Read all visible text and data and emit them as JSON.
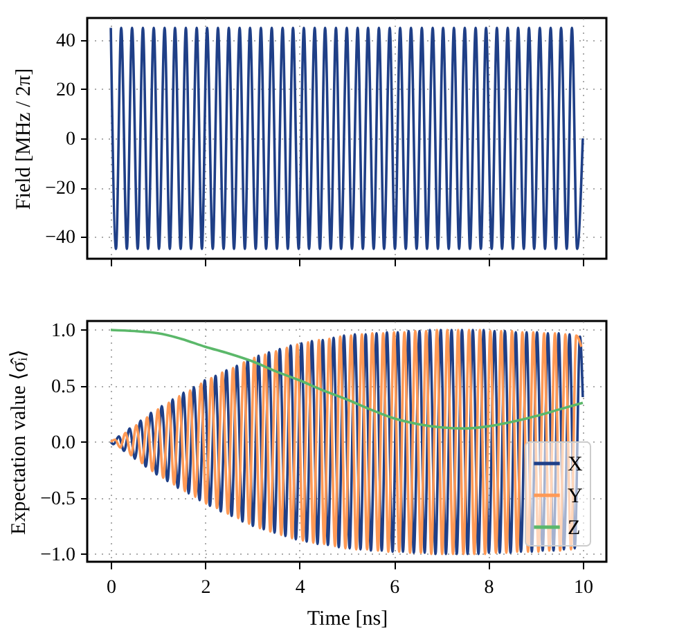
{
  "chart_data": [
    {
      "type": "line",
      "ylabel": "Field [MHz / 2π]",
      "xlim": [
        -0.5,
        10.5
      ],
      "xticks": [
        0,
        2,
        4,
        6,
        8,
        10
      ],
      "ylim": [
        -49,
        49
      ],
      "yticks": [
        -40,
        -20,
        0,
        20,
        40
      ],
      "grid": true,
      "tick_labels": "y",
      "series": [
        {
          "color": "#1f3f87",
          "x": [
            0,
            0.11,
            0.22,
            0.34,
            0.45,
            0.57,
            0.68,
            0.79,
            0.91,
            1.02,
            1.14,
            1.25,
            1.36,
            1.48,
            1.59,
            1.7,
            1.82,
            1.93,
            2.04,
            2.16,
            2.27,
            2.39,
            2.5,
            2.61,
            2.73,
            2.84,
            2.95,
            3.07,
            3.18,
            3.29,
            3.41,
            3.52,
            3.64,
            3.75,
            3.86,
            3.98,
            4.09,
            4.2,
            4.32,
            4.43,
            4.54,
            4.66,
            4.77,
            4.88,
            5.0,
            5.11,
            5.23,
            5.34,
            5.45,
            5.57,
            5.68,
            5.79,
            5.91,
            6.02,
            6.13,
            6.25,
            6.36,
            6.48,
            6.59,
            6.7,
            6.82,
            6.93,
            7.04,
            7.16,
            7.27,
            7.38,
            7.5,
            7.61,
            7.73,
            7.84,
            7.95,
            8.07,
            8.18,
            8.29,
            8.41,
            8.52,
            8.63,
            8.75,
            8.86,
            8.97,
            9.09,
            9.2,
            9.32,
            9.43,
            9.54,
            9.66,
            9.77,
            9.88,
            10
          ],
          "values": [
            45,
            -45,
            45,
            -45,
            45,
            -45,
            45,
            -45,
            45,
            -45,
            45,
            -45,
            45,
            -45,
            45,
            -45,
            45,
            -45,
            45,
            -45,
            45,
            -45,
            45,
            -45,
            45,
            -45,
            45,
            -45,
            45,
            -45,
            45,
            -45,
            45,
            -45,
            45,
            -45,
            45,
            -45,
            45,
            -45,
            45,
            -45,
            45,
            -45,
            45,
            -45,
            45,
            -45,
            45,
            -45,
            45,
            -45,
            45,
            -45,
            45,
            -45,
            45,
            -45,
            45,
            -45,
            45,
            -45,
            45,
            -45,
            45,
            -45,
            45,
            -45,
            45,
            -45,
            45,
            -45,
            45,
            -45,
            45,
            -45,
            45,
            -45,
            45,
            -45,
            45,
            -45,
            45,
            -45,
            45,
            -45,
            45,
            -45,
            0
          ]
        }
      ]
    },
    {
      "type": "line",
      "xlabel": "Time [ns]",
      "ylabel": "Expectation value ⟨σ̂ᵢ⟩",
      "xlim": [
        -0.5,
        10.5
      ],
      "xticks": [
        0,
        2,
        4,
        6,
        8,
        10
      ],
      "ylim": [
        -1.07,
        1.08
      ],
      "yticks": [
        {
          "value": -1,
          "label": "−1.0"
        },
        -0.5,
        {
          "value": 0,
          "label": "0.0"
        },
        0.5,
        {
          "value": 1,
          "label": "1.0"
        }
      ],
      "grid": true,
      "legend": "bottom right",
      "series": [
        {
          "name": "X",
          "color": "#1f3f87",
          "x": [
            0,
            0.06,
            0.17,
            0.28,
            0.4,
            0.51,
            0.63,
            0.74,
            0.85,
            0.97,
            1.08,
            1.2,
            1.31,
            1.42,
            1.54,
            1.65,
            1.76,
            1.88,
            1.99,
            2.1,
            2.22,
            2.33,
            2.45,
            2.56,
            2.67,
            2.79,
            2.9,
            3.01,
            3.13,
            3.24,
            3.35,
            3.47,
            3.58,
            3.7,
            3.81,
            3.92,
            4.04,
            4.15,
            4.26,
            4.38,
            4.49,
            4.6,
            4.72,
            4.83,
            4.94,
            5.06,
            5.17,
            5.29,
            5.4,
            5.51,
            5.63,
            5.74,
            5.85,
            5.97,
            6.08,
            6.19,
            6.31,
            6.42,
            6.54,
            6.65,
            6.76,
            6.88,
            6.99,
            7.1,
            7.22,
            7.33,
            7.44,
            7.56,
            7.67,
            7.79,
            7.9,
            8.01,
            8.13,
            8.24,
            8.35,
            8.47,
            8.58,
            8.69,
            8.81,
            8.92,
            9.03,
            9.15,
            9.26,
            9.38,
            9.49,
            9.6,
            9.72,
            9.83,
            9.94,
            10
          ],
          "values": [
            0,
            -0.02,
            0.05,
            -0.08,
            0.12,
            -0.15,
            0.19,
            -0.22,
            0.26,
            -0.29,
            0.32,
            -0.35,
            0.38,
            -0.41,
            0.44,
            -0.46,
            0.49,
            -0.52,
            0.55,
            -0.57,
            0.59,
            -0.62,
            0.64,
            -0.66,
            0.68,
            -0.71,
            0.73,
            -0.75,
            0.77,
            -0.78,
            0.8,
            -0.81,
            0.83,
            -0.84,
            0.86,
            -0.87,
            0.88,
            -0.89,
            0.9,
            -0.91,
            0.91,
            -0.92,
            0.93,
            -0.94,
            0.95,
            -0.95,
            0.96,
            -0.96,
            0.96,
            -0.97,
            0.97,
            -0.97,
            0.98,
            -0.98,
            0.98,
            -0.98,
            0.99,
            -0.99,
            0.99,
            -0.99,
            1.0,
            -1.0,
            1.0,
            -1.0,
            1.0,
            -1.0,
            1.0,
            -1.0,
            1.0,
            -1.0,
            1.0,
            -0.99,
            0.99,
            -0.99,
            0.99,
            -0.99,
            0.98,
            -0.98,
            0.98,
            -0.98,
            0.98,
            -0.97,
            0.97,
            -0.97,
            0.97,
            -0.96,
            0.96,
            -0.95,
            0.94,
            0.4
          ]
        },
        {
          "name": "Y",
          "color": "#ff9955",
          "x": [
            0,
            0.09,
            0.2,
            0.31,
            0.43,
            0.54,
            0.66,
            0.77,
            0.88,
            1.0,
            1.11,
            1.23,
            1.34,
            1.45,
            1.57,
            1.68,
            1.79,
            1.91,
            2.02,
            2.13,
            2.25,
            2.36,
            2.48,
            2.59,
            2.7,
            2.82,
            2.93,
            3.04,
            3.16,
            3.27,
            3.38,
            3.5,
            3.61,
            3.73,
            3.84,
            3.95,
            4.07,
            4.18,
            4.29,
            4.41,
            4.52,
            4.63,
            4.75,
            4.86,
            4.97,
            5.09,
            5.2,
            5.32,
            5.43,
            5.54,
            5.66,
            5.77,
            5.88,
            6.0,
            6.11,
            6.22,
            6.34,
            6.45,
            6.57,
            6.68,
            6.79,
            6.91,
            7.02,
            7.13,
            7.25,
            7.36,
            7.47,
            7.59,
            7.7,
            7.82,
            7.93,
            8.04,
            8.16,
            8.27,
            8.38,
            8.5,
            8.61,
            8.72,
            8.84,
            8.95,
            9.06,
            9.18,
            9.29,
            9.41,
            9.52,
            9.63,
            9.75,
            9.86,
            9.97
          ],
          "values": [
            0,
            0.02,
            -0.05,
            0.08,
            -0.12,
            0.15,
            -0.19,
            0.22,
            -0.26,
            0.29,
            -0.32,
            0.35,
            -0.38,
            0.41,
            -0.44,
            0.46,
            -0.49,
            0.52,
            -0.55,
            0.57,
            -0.59,
            0.62,
            -0.64,
            0.66,
            -0.68,
            0.71,
            -0.73,
            0.75,
            -0.77,
            0.78,
            -0.8,
            0.81,
            -0.83,
            0.84,
            -0.86,
            0.87,
            -0.88,
            0.89,
            -0.9,
            0.91,
            -0.91,
            0.92,
            -0.93,
            0.94,
            -0.95,
            0.95,
            -0.96,
            0.96,
            -0.96,
            0.97,
            -0.97,
            0.97,
            -0.98,
            0.98,
            -0.98,
            0.98,
            -0.99,
            0.99,
            -0.99,
            0.99,
            -1.0,
            1.0,
            -1.0,
            1.0,
            -1.0,
            1.0,
            -1.0,
            1.0,
            -1.0,
            1.0,
            -1.0,
            0.99,
            -0.99,
            0.99,
            -0.99,
            0.99,
            -0.98,
            0.98,
            -0.98,
            0.98,
            -0.98,
            0.97,
            -0.97,
            0.97,
            -0.97,
            0.96,
            -0.96,
            0.95,
            0.85
          ]
        },
        {
          "name": "Z",
          "color": "#5bb86a",
          "x": [
            0,
            0.5,
            1,
            1.5,
            2,
            2.5,
            3,
            3.5,
            4,
            4.5,
            5,
            5.5,
            6,
            6.5,
            7,
            7.5,
            8,
            8.5,
            9,
            9.5,
            10
          ],
          "values": [
            1.0,
            0.99,
            0.97,
            0.92,
            0.85,
            0.79,
            0.72,
            0.63,
            0.55,
            0.46,
            0.38,
            0.29,
            0.21,
            0.16,
            0.13,
            0.12,
            0.14,
            0.18,
            0.23,
            0.29,
            0.35
          ]
        }
      ]
    }
  ]
}
